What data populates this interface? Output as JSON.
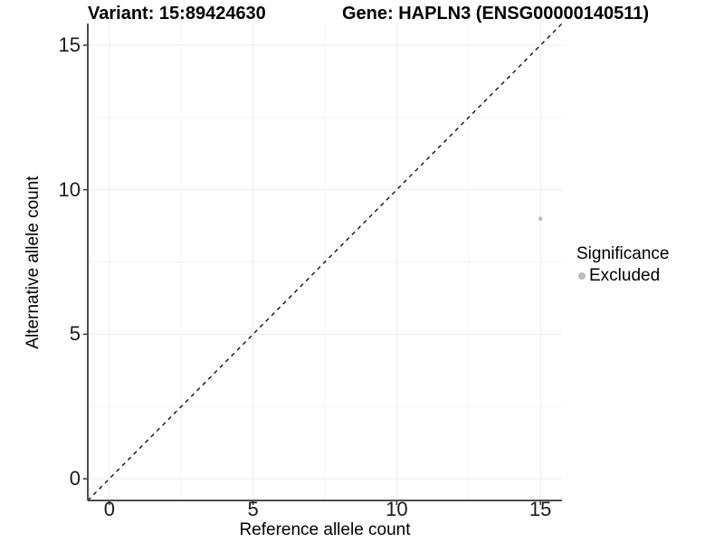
{
  "header": {
    "variant_title": "Variant: 15:89424630",
    "gene_title": "Gene: HAPLN3 (ENSG00000140511)"
  },
  "chart_data": {
    "type": "scatter",
    "title_left": "Variant: 15:89424630",
    "title_right": "Gene: HAPLN3 (ENSG00000140511)",
    "xlabel": "Reference allele count",
    "ylabel": "Alternative allele count",
    "xlim": [
      -0.75,
      15.75
    ],
    "ylim": [
      -0.75,
      15.75
    ],
    "x_ticks": [
      0,
      5,
      10,
      15
    ],
    "y_ticks": [
      0,
      5,
      10,
      15
    ],
    "x_minor_ticks": [
      2.5,
      7.5,
      12.5
    ],
    "y_minor_ticks": [
      2.5,
      7.5,
      12.5
    ],
    "grid": {
      "major_color": "#ececec",
      "minor_color": "#f4f4f4"
    },
    "axis_color": "#4d4d4d",
    "tick_color": "#333333",
    "reference_line": {
      "type": "identity",
      "equation": "y = x",
      "style": "dashed",
      "color": "#000000"
    },
    "points": [
      {
        "x": 15,
        "y": 9,
        "significance": "Excluded",
        "color": "#c0c0c0"
      }
    ],
    "legend": {
      "title": "Significance",
      "position": "right",
      "items": [
        {
          "label": "Excluded",
          "color": "#bdbdbd"
        }
      ]
    }
  }
}
